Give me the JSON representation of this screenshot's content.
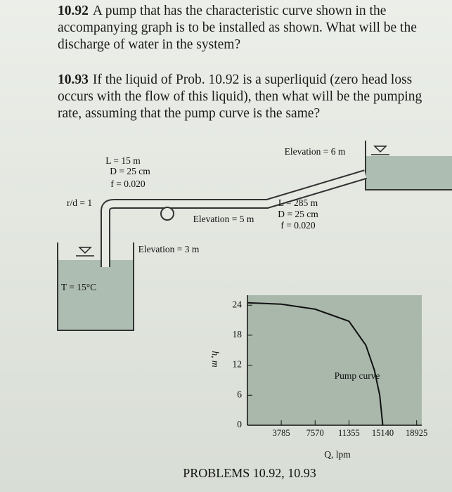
{
  "problems": [
    {
      "number": "10.92",
      "text": "A pump that has the characteristic curve shown in the accompanying graph is to be installed as shown. What will be the discharge of water in the system?"
    },
    {
      "number": "10.93",
      "text": "If the liquid of Prob. 10.92 is a superliquid (zero head loss occurs with the flow of this liquid), then what will be the pumping rate, assuming that the pump curve is the same?"
    }
  ],
  "figure": {
    "labels": [
      "L = 15 m",
      "D = 25 cm",
      "f = 0.020",
      "r/d = 1",
      "Elevation = 6 m",
      "L = 285 m",
      "D = 25 cm",
      "f = 0.020",
      "Elevation = 5 m",
      "Elevation = 3 m",
      "T = 15°C"
    ],
    "graph": {
      "ylabel": "h, m",
      "xlabel": "Q, lpm",
      "curve_label": "Pump curve",
      "xlim": [
        0,
        19500
      ],
      "ylim": [
        0,
        26
      ],
      "xticks": [
        3785,
        7570,
        11355,
        15140,
        18925
      ],
      "yticks": [
        0,
        6,
        12,
        18,
        24
      ],
      "curve": {
        "x": [
          0,
          3785,
          7570,
          11355,
          13250,
          14200,
          14800,
          15140
        ],
        "y": [
          24.5,
          24.2,
          23.2,
          20.8,
          16,
          11,
          6,
          0
        ]
      }
    },
    "caption": "PROBLEMS 10.92, 10.93"
  }
}
